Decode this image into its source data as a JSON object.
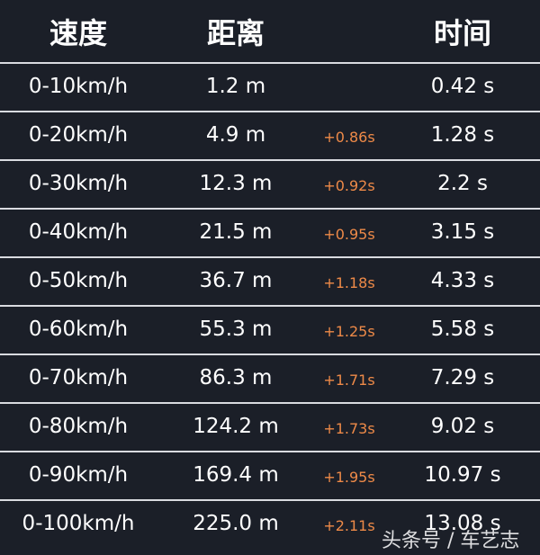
{
  "header": {
    "speed": "速度",
    "distance": "距离",
    "time": "时间"
  },
  "rows": [
    {
      "speed": "0-10km/h",
      "distance": "1.2 m",
      "delta": "",
      "time": "0.42 s"
    },
    {
      "speed": "0-20km/h",
      "distance": "4.9 m",
      "delta": "+0.86s",
      "time": "1.28 s"
    },
    {
      "speed": "0-30km/h",
      "distance": "12.3 m",
      "delta": "+0.92s",
      "time": "2.2 s"
    },
    {
      "speed": "0-40km/h",
      "distance": "21.5 m",
      "delta": "+0.95s",
      "time": "3.15 s"
    },
    {
      "speed": "0-50km/h",
      "distance": "36.7 m",
      "delta": "+1.18s",
      "time": "4.33 s"
    },
    {
      "speed": "0-60km/h",
      "distance": "55.3 m",
      "delta": "+1.25s",
      "time": "5.58 s"
    },
    {
      "speed": "0-70km/h",
      "distance": "86.3 m",
      "delta": "+1.71s",
      "time": "7.29 s"
    },
    {
      "speed": "0-80km/h",
      "distance": "124.2 m",
      "delta": "+1.73s",
      "time": "9.02 s"
    },
    {
      "speed": "0-90km/h",
      "distance": "169.4 m",
      "delta": "+1.95s",
      "time": "10.97 s"
    },
    {
      "speed": "0-100km/h",
      "distance": "225.0 m",
      "delta": "+2.11s",
      "time": "13.08 s"
    }
  ],
  "watermark": "头条号 / 车艺志",
  "colors": {
    "background": "#1b1f28",
    "delta": "#ee8a48",
    "divider": "#d9dbe0"
  }
}
